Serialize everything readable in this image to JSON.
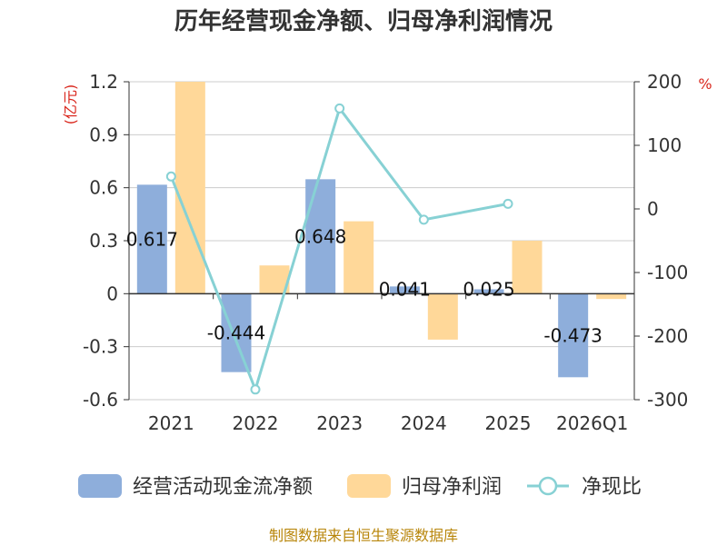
{
  "chart_data": {
    "type": "bar",
    "title": "历年经营现金净额、归母净利润情况",
    "categories": [
      "2021",
      "2022",
      "2023",
      "2024",
      "2025",
      "2026Q1"
    ],
    "series": [
      {
        "name": "经营活动现金流净额",
        "axis": "left",
        "kind": "bar",
        "color": "#8eaedb",
        "values": [
          0.617,
          -0.444,
          0.648,
          0.041,
          0.025,
          -0.473
        ]
      },
      {
        "name": "归母净利润",
        "axis": "left",
        "kind": "bar",
        "color": "#ffd899",
        "values": [
          1.2,
          0.16,
          0.41,
          -0.26,
          0.3,
          -0.03
        ]
      },
      {
        "name": "净现比",
        "axis": "right",
        "kind": "line",
        "color": "#87d1d4",
        "values": [
          51,
          -284,
          158,
          -17,
          8,
          null
        ]
      }
    ],
    "data_labels": [
      "0.617",
      "-0.444",
      "0.648",
      "0.041",
      "0.025",
      "-0.473"
    ],
    "left_axis": {
      "unit": "(亿元)",
      "ylim": [
        -0.6,
        1.2
      ],
      "ticks": [
        -0.6,
        -0.3,
        0,
        0.3,
        0.6,
        0.9,
        1.2
      ],
      "tick_labels": [
        "-0.6",
        "-0.3",
        "0",
        "0.3",
        "0.6",
        "0.9",
        "1.2"
      ]
    },
    "right_axis": {
      "unit": "%",
      "ylim": [
        -300,
        200
      ],
      "ticks": [
        -300,
        -200,
        -100,
        0,
        100,
        200
      ],
      "tick_labels": [
        "-300",
        "-200",
        "-100",
        "0",
        "100",
        "200"
      ]
    },
    "grid": true,
    "legend_position": "bottom",
    "source": "制图数据来自恒生聚源数据库"
  }
}
